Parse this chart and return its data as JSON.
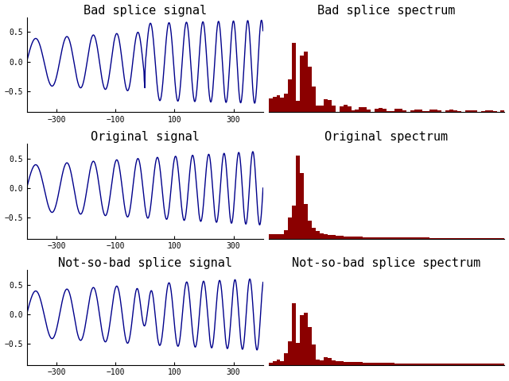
{
  "titles_left": [
    "Bad splice signal",
    "Original signal",
    "Not-so-bad splice signal"
  ],
  "titles_right": [
    "Bad splice spectrum",
    "Original spectrum",
    "Not-so-bad splice spectrum"
  ],
  "signal_color": "#00008B",
  "spectrum_color": "#8B0000",
  "signal_xlim": [
    -400,
    400
  ],
  "signal_ylim": [
    -0.85,
    0.75
  ],
  "signal_xticks": [
    -300,
    -100,
    100,
    300
  ],
  "signal_yticks": [
    -0.5,
    0,
    0.5
  ],
  "title_fontsize": 11,
  "font_family": "monospace"
}
